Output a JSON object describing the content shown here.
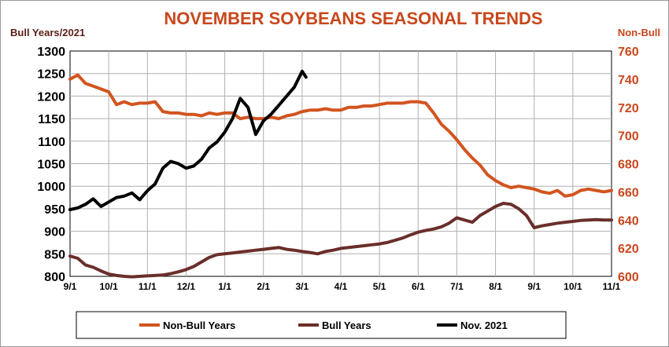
{
  "chart_data": {
    "type": "line",
    "title": "NOVEMBER SOYBEANS  SEASONAL TRENDS",
    "y_left_label": "Bull Years/2021",
    "y_right_label": "Non-Bull",
    "y_left_range": [
      800,
      1300
    ],
    "y_left_ticks": [
      "1300",
      "1250",
      "1200",
      "1150",
      "1100",
      "1050",
      "1000",
      "950",
      "900",
      "850",
      "800"
    ],
    "y_right_range": [
      600,
      760
    ],
    "y_right_ticks": [
      "760",
      "740",
      "720",
      "700",
      "680",
      "660",
      "640",
      "620",
      "600"
    ],
    "x_ticks": [
      "9/1",
      "10/1",
      "11/1",
      "12/1",
      "1/1",
      "2/1",
      "3/1",
      "4/1",
      "5/1",
      "6/1",
      "7/1",
      "8/1",
      "9/1",
      "10/1",
      "11/1"
    ],
    "grid": true,
    "legend_position": "bottom",
    "series": [
      {
        "name": "Non-Bull Years",
        "axis": "right",
        "color": "#d2541f",
        "x": [
          0,
          0.2,
          0.4,
          0.6,
          0.8,
          1.0,
          1.2,
          1.4,
          1.6,
          1.8,
          2.0,
          2.2,
          2.4,
          2.6,
          2.8,
          3.0,
          3.2,
          3.4,
          3.6,
          3.8,
          4.0,
          4.2,
          4.4,
          4.6,
          4.8,
          5.0,
          5.2,
          5.4,
          5.6,
          5.8,
          6.0,
          6.2,
          6.4,
          6.6,
          6.8,
          7.0,
          7.2,
          7.4,
          7.6,
          7.8,
          8.0,
          8.2,
          8.4,
          8.6,
          8.8,
          9.0,
          9.2,
          9.4,
          9.6,
          9.8,
          10.0,
          10.2,
          10.4,
          10.6,
          10.8,
          11.0,
          11.2,
          11.4,
          11.6,
          11.8,
          12.0,
          12.2,
          12.4,
          12.6,
          12.8,
          13.0,
          13.2,
          13.4,
          13.6,
          13.8,
          14.0
        ],
        "values": [
          740,
          743,
          737,
          735,
          733,
          731,
          722,
          724,
          722,
          723,
          723,
          724,
          717,
          716,
          716,
          715,
          715,
          714,
          716,
          715,
          716,
          716,
          712,
          713,
          712,
          712,
          713,
          712,
          714,
          715,
          717,
          718,
          718,
          719,
          718,
          718,
          720,
          720,
          721,
          721,
          722,
          723,
          723,
          723,
          724,
          724,
          723,
          716,
          708,
          703,
          697,
          690,
          684,
          679,
          672,
          668,
          665,
          663,
          664,
          663,
          662,
          660,
          659,
          661,
          657,
          658,
          661,
          662,
          661,
          660,
          661
        ]
      },
      {
        "name": "Bull Years",
        "axis": "left",
        "color": "#6a2e2a",
        "x": [
          0,
          0.2,
          0.4,
          0.6,
          0.8,
          1.0,
          1.2,
          1.4,
          1.6,
          1.8,
          2.0,
          2.2,
          2.4,
          2.6,
          2.8,
          3.0,
          3.2,
          3.4,
          3.6,
          3.8,
          4.0,
          4.2,
          4.4,
          4.6,
          4.8,
          5.0,
          5.2,
          5.4,
          5.6,
          5.8,
          6.0,
          6.2,
          6.4,
          6.6,
          6.8,
          7.0,
          7.2,
          7.4,
          7.6,
          7.8,
          8.0,
          8.2,
          8.4,
          8.6,
          8.8,
          9.0,
          9.2,
          9.4,
          9.6,
          9.8,
          10.0,
          10.2,
          10.4,
          10.6,
          10.8,
          11.0,
          11.2,
          11.4,
          11.6,
          11.8,
          12.0,
          12.2,
          12.4,
          12.6,
          12.8,
          13.0,
          13.2,
          13.4,
          13.6,
          13.8,
          14.0
        ],
        "values": [
          845,
          840,
          825,
          820,
          812,
          805,
          802,
          800,
          799,
          800,
          801,
          802,
          803,
          806,
          810,
          815,
          822,
          832,
          842,
          848,
          850,
          852,
          854,
          856,
          858,
          860,
          862,
          864,
          860,
          858,
          855,
          853,
          850,
          855,
          858,
          862,
          864,
          866,
          868,
          870,
          872,
          875,
          880,
          885,
          892,
          898,
          902,
          905,
          910,
          918,
          930,
          925,
          920,
          935,
          945,
          955,
          962,
          960,
          950,
          935,
          908,
          912,
          915,
          918,
          920,
          922,
          924,
          925,
          926,
          925,
          925
        ]
      },
      {
        "name": "Nov. 2021",
        "axis": "left",
        "color": "#000000",
        "x": [
          0,
          0.2,
          0.4,
          0.6,
          0.8,
          1.0,
          1.2,
          1.4,
          1.6,
          1.8,
          2.0,
          2.2,
          2.4,
          2.6,
          2.8,
          3.0,
          3.2,
          3.4,
          3.6,
          3.8,
          4.0,
          4.2,
          4.4,
          4.6,
          4.8,
          5.0,
          5.2,
          5.4,
          5.6,
          5.8,
          6.0,
          6.1
        ],
        "values": [
          948,
          952,
          960,
          972,
          955,
          965,
          975,
          978,
          985,
          970,
          990,
          1005,
          1040,
          1055,
          1050,
          1040,
          1045,
          1060,
          1085,
          1098,
          1120,
          1150,
          1195,
          1175,
          1115,
          1145,
          1160,
          1180,
          1200,
          1220,
          1255,
          1242
        ]
      }
    ]
  }
}
